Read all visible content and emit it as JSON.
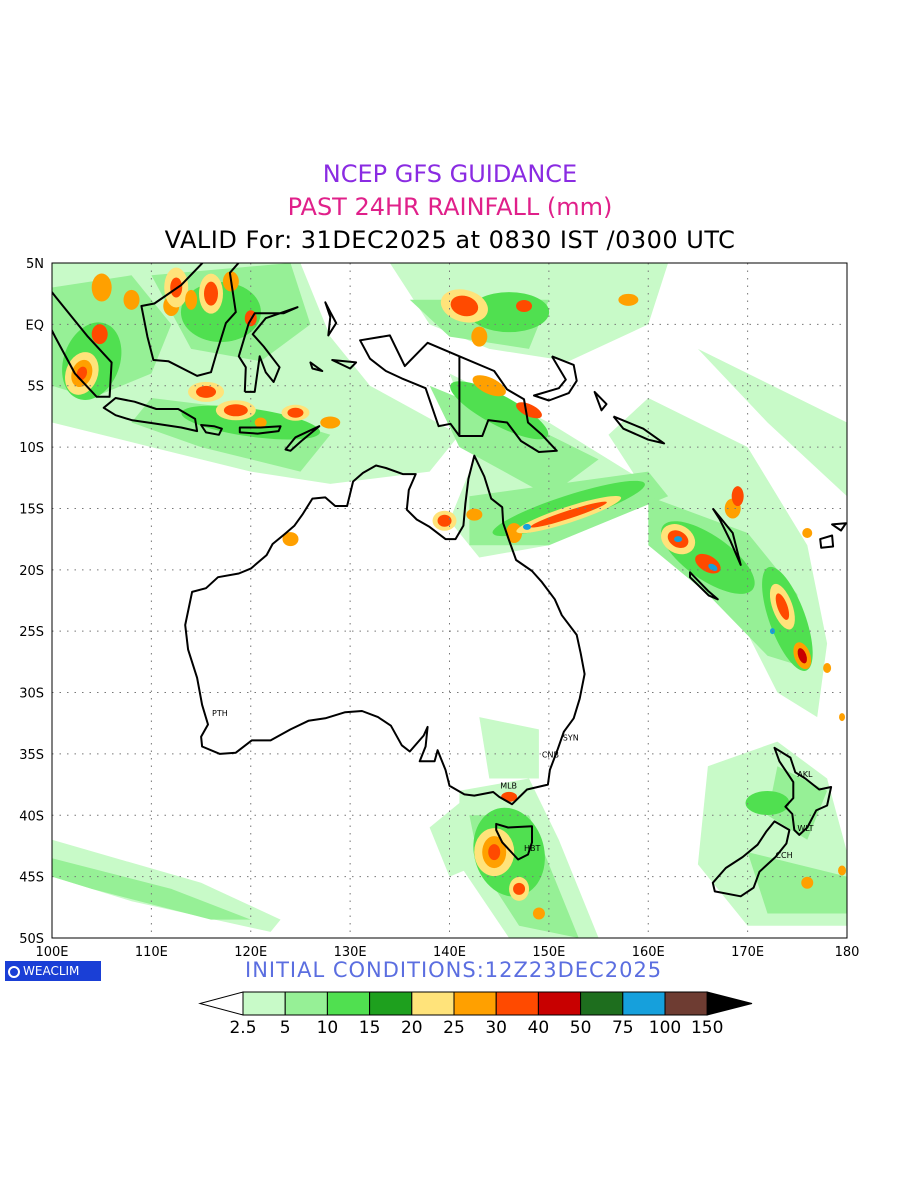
{
  "header": {
    "line1": "NCEP GFS GUIDANCE",
    "line2": "PAST 24HR RAINFALL (mm)",
    "line3": "VALID For: 31DEC2025 at 0830 IST /0300 UTC",
    "line1_color": "#8a2be2",
    "line2_color": "#e0208a",
    "line3_color": "#000000"
  },
  "axes": {
    "lat_labels": [
      "5N",
      "EQ",
      "5S",
      "10S",
      "15S",
      "20S",
      "25S",
      "30S",
      "35S",
      "40S",
      "45S",
      "50S"
    ],
    "lon_labels": [
      "100E",
      "110E",
      "120E",
      "130E",
      "140E",
      "150E",
      "160E",
      "170E",
      "180"
    ],
    "lat_range": [
      -50,
      5
    ],
    "lon_range": [
      100,
      180
    ]
  },
  "stations": [
    {
      "code": "PTH",
      "lon": 115.9,
      "lat": -31.9
    },
    {
      "code": "SYN",
      "lon": 151.2,
      "lat": -33.9
    },
    {
      "code": "CNB",
      "lon": 149.1,
      "lat": -35.3
    },
    {
      "code": "MLB",
      "lon": 144.9,
      "lat": -37.8
    },
    {
      "code": "HBT",
      "lon": 147.3,
      "lat": -42.9
    },
    {
      "code": "WLT",
      "lon": 174.8,
      "lat": -41.3
    },
    {
      "code": "CCH",
      "lon": 172.6,
      "lat": -43.5
    },
    {
      "code": "AKL",
      "lon": 174.8,
      "lat": -36.9
    }
  ],
  "logo": {
    "text": "WEACLIM",
    "icon": "circle-logo-icon"
  },
  "initial_conditions": "INITIAL CONDITIONS:12Z23DEC2025",
  "legend": {
    "labels": [
      "2.5",
      "5",
      "10",
      "15",
      "20",
      "25",
      "30",
      "40",
      "50",
      "75",
      "100",
      "150"
    ],
    "colors": [
      "#ffffff",
      "#c8fac8",
      "#96f096",
      "#50e050",
      "#1ea01e",
      "#ffe37a",
      "#ffa000",
      "#ff4a00",
      "#c80000",
      "#1e6e1e",
      "#16a0dc",
      "#6e3c32",
      "#000000"
    ]
  }
}
